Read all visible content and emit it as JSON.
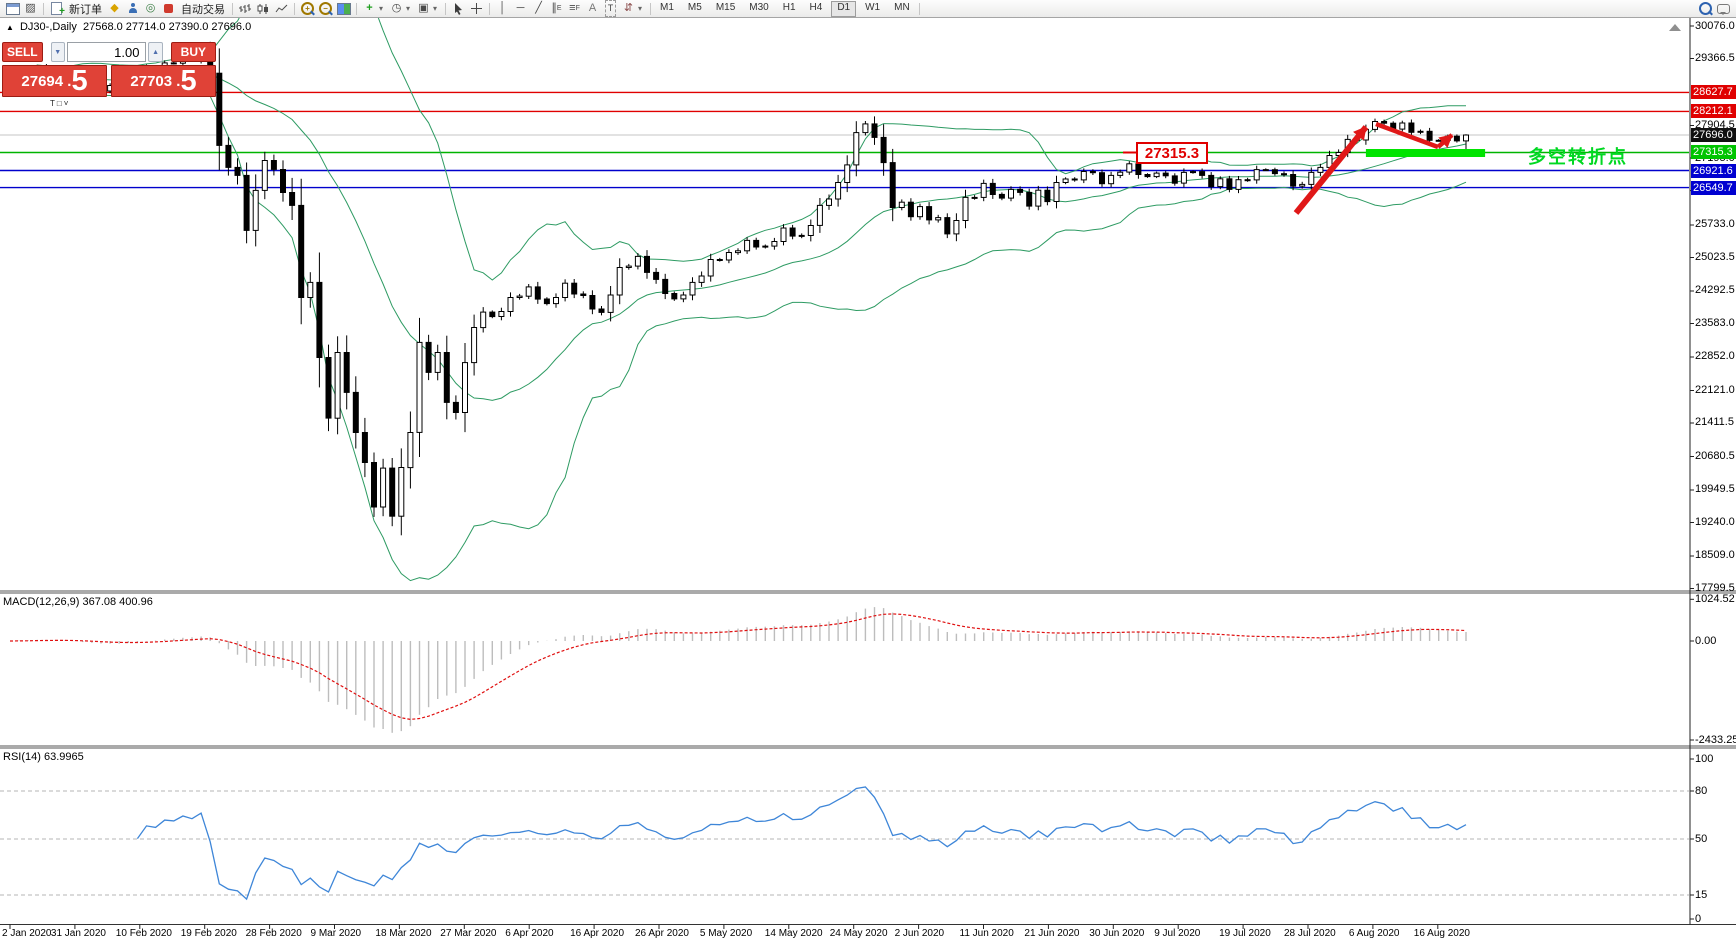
{
  "toolbar": {
    "new_order_label": "新订单",
    "autotrading_label": "自动交易",
    "timeframes": [
      "M1",
      "M5",
      "M15",
      "M30",
      "H1",
      "H4",
      "D1",
      "W1",
      "MN"
    ],
    "active_timeframe": "D1"
  },
  "chart": {
    "marker": "▲",
    "symbol_period": "DJ30-,Daily",
    "ohlc": "27568.0 27714.0 27390.0 27696.0",
    "object_markers": "T□˅"
  },
  "trade_panel": {
    "sell_label": "SELL",
    "buy_label": "BUY",
    "volume": "1.00",
    "sell_price": "27694 .",
    "sell_price_frac": "5",
    "buy_price": "27703 .",
    "buy_price_frac": "5"
  },
  "indicators": {
    "macd_label": "MACD(12,26,9) 367.08 400.96",
    "rsi_label": "RSI(14) 63.9965"
  },
  "annotations": {
    "price_callout": "27315.3",
    "turning_point": "多空转折点"
  },
  "axes": {
    "price_ticks": [
      "30076.0",
      "29366.5",
      "27904.5",
      "27195.0",
      "26484.0",
      "25733.0",
      "25023.5",
      "24292.5",
      "23583.0",
      "22852.0",
      "22121.0",
      "21411.5",
      "20680.5",
      "19949.5",
      "19240.0",
      "18509.0",
      "17799.5"
    ],
    "badges": [
      {
        "label": "28627.7",
        "price": 28627.7,
        "bg": "#e00000"
      },
      {
        "label": "28212.1",
        "price": 28212.1,
        "bg": "#e00000"
      },
      {
        "label": "27696.0",
        "price": 27696.0,
        "bg": "#101010"
      },
      {
        "label": "27315.3",
        "price": 27315.3,
        "bg": "#00c400"
      },
      {
        "label": "26921.6",
        "price": 26921.6,
        "bg": "#0000d0"
      },
      {
        "label": "26549.7",
        "price": 26549.7,
        "bg": "#0000d0"
      }
    ],
    "macd_ticks": [
      {
        "label": "1024.52",
        "value": 1024.52
      },
      {
        "label": "0.00",
        "value": 0
      },
      {
        "label": "-2433.25",
        "value": -2433.25
      }
    ],
    "rsi_ticks": [
      {
        "label": "100",
        "value": 100
      },
      {
        "label": "80",
        "value": 80
      },
      {
        "label": "50",
        "value": 50
      },
      {
        "label": "15",
        "value": 15
      },
      {
        "label": "0",
        "value": 0
      }
    ],
    "dates": [
      "2 Jan 2020",
      "31 Jan 2020",
      "10 Feb 2020",
      "19 Feb 2020",
      "28 Feb 2020",
      "9 Mar 2020",
      "18 Mar 2020",
      "27 Mar 2020",
      "6 Apr 2020",
      "16 Apr 2020",
      "26 Apr 2020",
      "5 May 2020",
      "14 May 2020",
      "24 May 2020",
      "2 Jun 2020",
      "11 Jun 2020",
      "21 Jun 2020",
      "30 Jun 2020",
      "9 Jul 2020",
      "19 Jul 2020",
      "28 Jul 2020",
      "6 Aug 2020",
      "16 Aug 2020"
    ]
  },
  "chart_data": {
    "type": "candlestick",
    "symbol": "DJ30-",
    "period": "Daily",
    "last_ohlc": {
      "open": 27568.0,
      "high": 27714.0,
      "low": 27390.0,
      "close": 27696.0
    },
    "bars_total": 161,
    "price_axis_visible_range": [
      17799.5,
      30076.0
    ],
    "close_anchors": [
      [
        0,
        28960
      ],
      [
        3,
        29160
      ],
      [
        6,
        28900
      ],
      [
        9,
        28640
      ],
      [
        12,
        28790
      ],
      [
        15,
        29115
      ],
      [
        18,
        29290
      ],
      [
        21,
        29380
      ],
      [
        22,
        29100
      ],
      [
        23,
        27415
      ],
      [
        24,
        27045
      ],
      [
        25,
        26760
      ],
      [
        26,
        25670
      ],
      [
        28,
        27195
      ],
      [
        29,
        26890
      ],
      [
        31,
        26105
      ],
      [
        32,
        24205
      ],
      [
        33,
        24425
      ],
      [
        34,
        22895
      ],
      [
        35,
        21475
      ],
      [
        36,
        23005
      ],
      [
        37,
        22025
      ],
      [
        38,
        21260
      ],
      [
        39,
        20495
      ],
      [
        40,
        19620
      ],
      [
        41,
        20385
      ],
      [
        42,
        19405
      ],
      [
        43,
        20385
      ],
      [
        44,
        21260
      ],
      [
        45,
        23115
      ],
      [
        46,
        22570
      ],
      [
        47,
        22895
      ],
      [
        48,
        21915
      ],
      [
        49,
        21585
      ],
      [
        50,
        22785
      ],
      [
        51,
        23440
      ],
      [
        52,
        23880
      ],
      [
        53,
        23705
      ],
      [
        55,
        24095
      ],
      [
        57,
        24360
      ],
      [
        59,
        23985
      ],
      [
        61,
        24425
      ],
      [
        63,
        24140
      ],
      [
        65,
        23770
      ],
      [
        67,
        24750
      ],
      [
        69,
        25015
      ],
      [
        71,
        24490
      ],
      [
        73,
        24095
      ],
      [
        75,
        24425
      ],
      [
        77,
        24925
      ],
      [
        79,
        25080
      ],
      [
        81,
        25360
      ],
      [
        83,
        25230
      ],
      [
        85,
        25625
      ],
      [
        87,
        25450
      ],
      [
        89,
        26105
      ],
      [
        91,
        26605
      ],
      [
        92,
        27100
      ],
      [
        93,
        27695
      ],
      [
        94,
        27980
      ],
      [
        95,
        27590
      ],
      [
        96,
        27150
      ],
      [
        97,
        26060
      ],
      [
        98,
        26280
      ],
      [
        99,
        25885
      ],
      [
        100,
        26170
      ],
      [
        101,
        25800
      ],
      [
        102,
        25950
      ],
      [
        103,
        25515
      ],
      [
        104,
        25885
      ],
      [
        105,
        26280
      ],
      [
        106,
        26390
      ],
      [
        107,
        26605
      ],
      [
        108,
        26455
      ],
      [
        109,
        26280
      ],
      [
        110,
        26540
      ],
      [
        111,
        26390
      ],
      [
        112,
        26170
      ],
      [
        113,
        26455
      ],
      [
        114,
        26280
      ],
      [
        115,
        26605
      ],
      [
        116,
        26760
      ],
      [
        117,
        26670
      ],
      [
        118,
        26935
      ],
      [
        119,
        26825
      ],
      [
        120,
        26670
      ],
      [
        121,
        26760
      ],
      [
        122,
        26935
      ],
      [
        123,
        27045
      ],
      [
        124,
        26890
      ],
      [
        125,
        26760
      ],
      [
        126,
        26890
      ],
      [
        127,
        26760
      ],
      [
        128,
        26670
      ],
      [
        129,
        26825
      ],
      [
        130,
        26935
      ],
      [
        131,
        26760
      ],
      [
        132,
        26605
      ],
      [
        133,
        26715
      ],
      [
        134,
        26540
      ],
      [
        135,
        26670
      ],
      [
        136,
        26760
      ],
      [
        137,
        26890
      ],
      [
        138,
        26975
      ],
      [
        139,
        26825
      ],
      [
        140,
        26890
      ],
      [
        141,
        26540
      ],
      [
        142,
        26670
      ],
      [
        143,
        26825
      ],
      [
        144,
        27045
      ],
      [
        145,
        27195
      ],
      [
        146,
        27370
      ],
      [
        147,
        27545
      ],
      [
        148,
        27630
      ],
      [
        149,
        27765
      ],
      [
        150,
        28025
      ],
      [
        151,
        27915
      ],
      [
        152,
        27850
      ],
      [
        153,
        27935
      ],
      [
        154,
        27805
      ],
      [
        155,
        27740
      ],
      [
        156,
        27630
      ],
      [
        157,
        27545
      ],
      [
        158,
        27695
      ],
      [
        159,
        27570
      ],
      [
        160,
        27696
      ]
    ],
    "levels": [
      {
        "price": 28627.7,
        "kind": "resistance",
        "color": "#e00000"
      },
      {
        "price": 28212.1,
        "kind": "resistance",
        "color": "#e00000"
      },
      {
        "price": 27696.0,
        "kind": "current",
        "color": "#c4c4c4"
      },
      {
        "price": 27315.3,
        "kind": "pivot",
        "color": "#00b400"
      },
      {
        "price": 26921.6,
        "kind": "support",
        "color": "#0000cc"
      },
      {
        "price": 26549.7,
        "kind": "support",
        "color": "#0000cc"
      }
    ],
    "highlight_zone": {
      "price_top": 27400,
      "price_bottom": 27230,
      "bar_from": 149,
      "bar_to": 161,
      "color": "#00e400"
    },
    "bollinger": {
      "period": 20,
      "deviation": 2,
      "color": "#2e9b63"
    },
    "macd": {
      "fast": 12,
      "slow": 26,
      "signal": 9,
      "current_macd": 367.08,
      "current_signal": 400.96,
      "range": [
        -2433.25,
        1024.52
      ]
    },
    "rsi": {
      "period": 14,
      "current": 63.9965,
      "range": [
        0,
        100
      ],
      "levels": [
        80,
        50,
        15
      ]
    }
  }
}
